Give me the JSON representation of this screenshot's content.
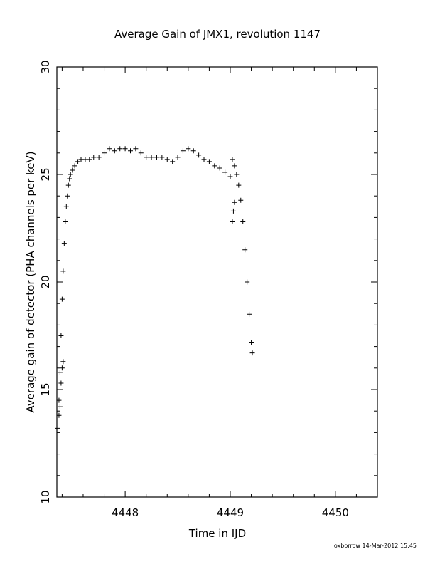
{
  "chart_data": {
    "type": "scatter",
    "title": "Average Gain of JMX1, revolution 1147",
    "xlabel": "Time in IJD",
    "ylabel": "Average gain of detector (PHA channels per keV)",
    "xlim": [
      4447.35,
      4450.4
    ],
    "ylim": [
      10,
      30
    ],
    "x_ticks": [
      "4448",
      "4449",
      "4450"
    ],
    "x_tick_values": [
      4448,
      4449,
      4450
    ],
    "x_minor_step": 0.2,
    "y_ticks": [
      "10",
      "15",
      "20",
      "25",
      "30"
    ],
    "y_tick_values": [
      10,
      15,
      20,
      25,
      30
    ],
    "y_minor_step": 1,
    "marker": "+",
    "grid": false,
    "series": [
      {
        "x": [
          4447.36,
          4447.37,
          4447.38,
          4447.39,
          4447.4,
          4447.41,
          4447.42,
          4447.43,
          4447.44,
          4447.45,
          4447.46,
          4447.47,
          4447.48,
          4447.5,
          4447.52,
          4447.55,
          4447.58,
          4447.62,
          4447.66,
          4447.7,
          4447.75,
          4447.8,
          4447.85,
          4447.9,
          4447.95,
          4448.0,
          4448.05,
          4448.1,
          4448.15,
          4448.2,
          4448.25,
          4448.3,
          4448.35,
          4448.4,
          4448.45,
          4448.5,
          4448.55,
          4448.6,
          4448.65,
          4448.7,
          4448.75,
          4448.8,
          4448.85,
          4448.9,
          4448.95,
          4449.0,
          4449.02,
          4449.04,
          4449.06,
          4449.08,
          4449.1,
          4449.12,
          4449.14,
          4449.16,
          4449.18,
          4449.2,
          4449.21
        ],
        "y": [
          13.2,
          14.5,
          15.8,
          17.5,
          19.2,
          20.5,
          21.8,
          22.8,
          23.5,
          24.0,
          24.5,
          24.8,
          25.0,
          25.2,
          25.4,
          25.6,
          25.7,
          25.7,
          25.7,
          25.8,
          25.8,
          26.0,
          26.2,
          26.1,
          26.2,
          26.2,
          26.1,
          26.2,
          26.0,
          25.8,
          25.8,
          25.8,
          25.8,
          25.7,
          25.6,
          25.8,
          26.1,
          26.2,
          26.1,
          25.9,
          25.7,
          25.6,
          25.4,
          25.3,
          25.1,
          24.9,
          25.7,
          25.4,
          25.0,
          24.5,
          23.8,
          22.8,
          21.5,
          20.0,
          18.5,
          17.2,
          16.7
        ]
      },
      {
        "x": [
          4447.37,
          4447.38,
          4447.39,
          4447.4,
          4447.41,
          4449.02,
          4449.03,
          4449.04
        ],
        "y": [
          13.8,
          14.2,
          15.3,
          16.0,
          16.3,
          22.8,
          23.3,
          23.7
        ]
      }
    ]
  },
  "footer": {
    "credit": "oxborrow 14-Mar-2012 15:45"
  }
}
